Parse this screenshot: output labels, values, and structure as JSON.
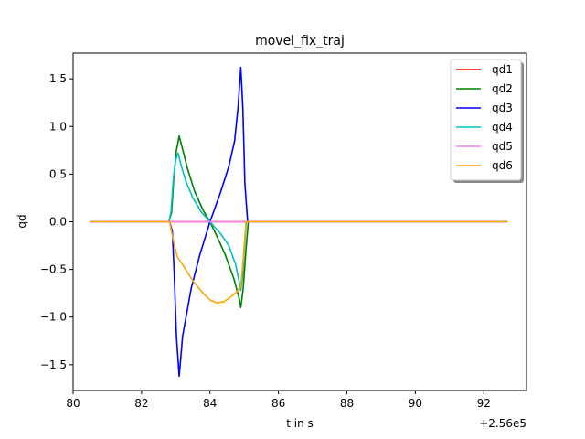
{
  "chart_data": {
    "type": "line",
    "title": "movel_fix_traj",
    "xlabel": "t in s",
    "ylabel": "qd",
    "x_offset_label": "+2.56e5",
    "xlim": [
      80.0,
      93.25
    ],
    "ylim": [
      -1.77,
      1.77
    ],
    "xticks": [
      80,
      82,
      84,
      86,
      88,
      90,
      92
    ],
    "yticks": [
      1.5,
      1.0,
      0.5,
      0.0,
      -0.5,
      -1.0,
      -1.5
    ],
    "xtick_labels": [
      "80",
      "82",
      "84",
      "86",
      "88",
      "90",
      "92"
    ],
    "ytick_labels": [
      "1.5",
      "1.0",
      "0.5",
      "0.0",
      "−0.5",
      "−1.0",
      "−1.5"
    ],
    "grid": false,
    "legend_position": "top-right",
    "series": [
      {
        "name": "qd1",
        "color": "#ff0000",
        "x": [
          80.5,
          92.7
        ],
        "y": [
          0.0,
          0.0
        ]
      },
      {
        "name": "qd2",
        "color": "#008000",
        "x": [
          80.5,
          82.8,
          82.88,
          82.95,
          83.02,
          83.1,
          83.2,
          83.35,
          83.55,
          83.8,
          84.0,
          84.2,
          84.45,
          84.7,
          84.85,
          84.9,
          84.97,
          85.05,
          85.12,
          92.7
        ],
        "y": [
          0.0,
          0.0,
          0.1,
          0.5,
          0.75,
          0.9,
          0.76,
          0.55,
          0.32,
          0.12,
          0.0,
          -0.15,
          -0.35,
          -0.6,
          -0.8,
          -0.9,
          -0.7,
          -0.3,
          0.0,
          0.0
        ]
      },
      {
        "name": "qd3",
        "color": "#0000ff",
        "x": [
          80.5,
          82.82,
          82.9,
          82.95,
          83.02,
          83.1,
          83.2,
          83.45,
          83.7,
          84.0,
          84.3,
          84.55,
          84.72,
          84.82,
          84.9,
          84.96,
          85.02,
          85.1,
          92.7
        ],
        "y": [
          0.0,
          0.0,
          -0.1,
          -0.5,
          -1.2,
          -1.62,
          -1.2,
          -0.7,
          -0.35,
          0.0,
          0.3,
          0.58,
          0.85,
          1.2,
          1.62,
          1.2,
          0.4,
          0.0,
          0.0
        ]
      },
      {
        "name": "qd4",
        "color": "#00bfbf",
        "x": [
          80.5,
          82.8,
          82.86,
          82.93,
          83.0,
          83.07,
          83.15,
          83.3,
          83.5,
          83.75,
          84.0,
          84.3,
          84.55,
          84.75,
          84.85,
          84.9,
          84.96,
          85.0,
          85.06,
          92.7
        ],
        "y": [
          0.0,
          0.0,
          0.1,
          0.45,
          0.65,
          0.72,
          0.6,
          0.42,
          0.25,
          0.1,
          0.0,
          -0.12,
          -0.25,
          -0.45,
          -0.62,
          -0.72,
          -0.55,
          -0.3,
          0.0,
          0.0
        ]
      },
      {
        "name": "qd5",
        "color": "#ee82ee",
        "x": [
          80.5,
          92.7
        ],
        "y": [
          0.0,
          0.0
        ]
      },
      {
        "name": "qd6",
        "color": "#ffa500",
        "x": [
          80.5,
          82.82,
          82.9,
          83.0,
          83.05,
          83.2,
          83.5,
          83.8,
          84.0,
          84.2,
          84.4,
          84.6,
          84.8,
          84.9,
          84.97,
          85.05,
          92.7
        ],
        "y": [
          0.0,
          0.0,
          -0.15,
          -0.3,
          -0.37,
          -0.45,
          -0.62,
          -0.75,
          -0.82,
          -0.85,
          -0.84,
          -0.79,
          -0.73,
          -0.68,
          -0.4,
          0.0,
          0.0
        ]
      }
    ]
  }
}
